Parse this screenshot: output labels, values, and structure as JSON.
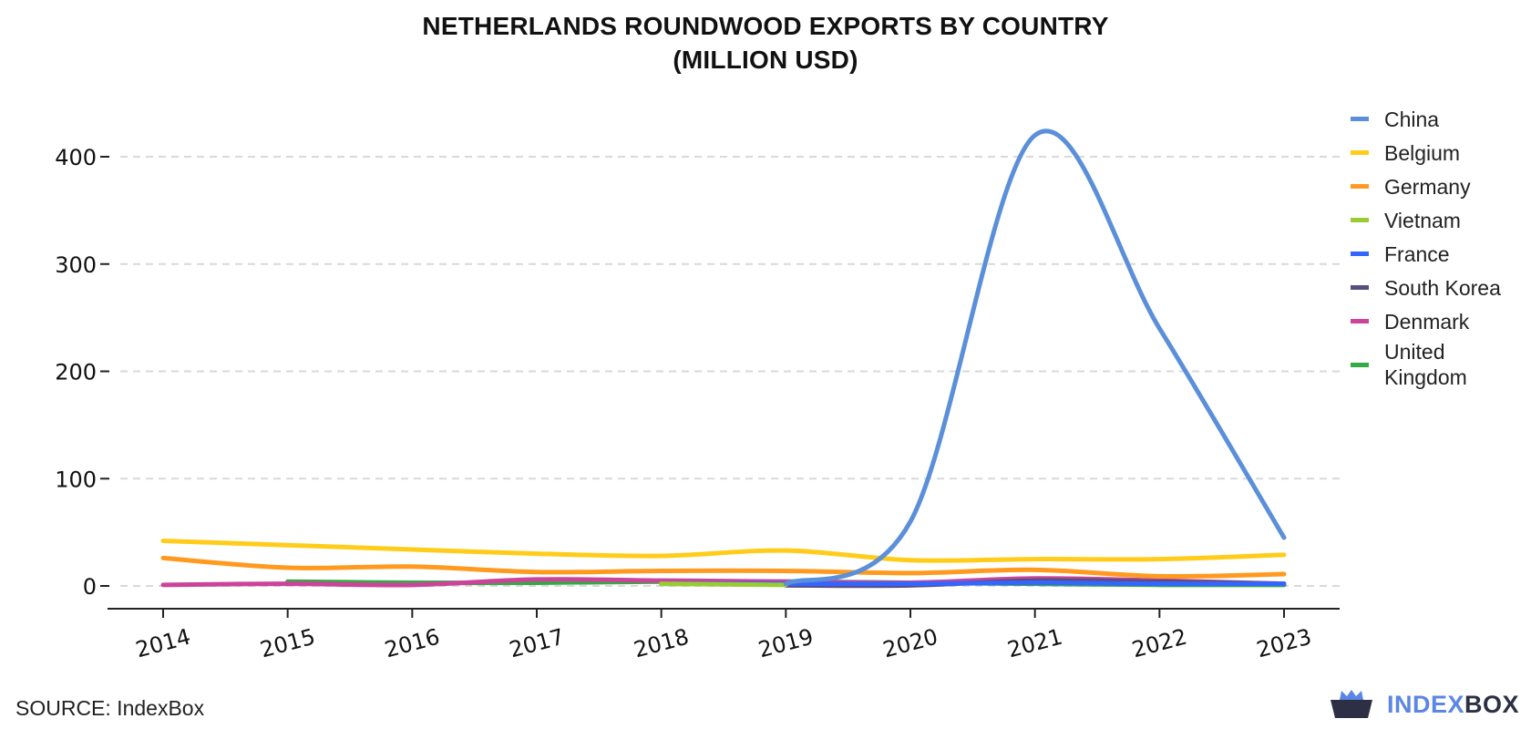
{
  "title_line1": "NETHERLANDS ROUNDWOOD EXPORTS BY COUNTRY",
  "title_line2": "(MILLION USD)",
  "source": "SOURCE: IndexBox",
  "brand": {
    "part1": "INDEX",
    "part2": "BOX"
  },
  "chart_data": {
    "type": "line",
    "title": "NETHERLANDS ROUNDWOOD EXPORTS BY COUNTRY (MILLION USD)",
    "xlabel": "",
    "ylabel": "",
    "x": [
      2014,
      2015,
      2016,
      2017,
      2018,
      2019,
      2020,
      2021,
      2022,
      2023
    ],
    "x_tick_labels": [
      "2014",
      "2015",
      "2016",
      "2017",
      "2018",
      "2019",
      "2020",
      "2021",
      "2022",
      "2023"
    ],
    "ylim": [
      -20,
      440
    ],
    "y_ticks": [
      0,
      100,
      200,
      300,
      400
    ],
    "y_tick_labels": [
      "0",
      "100",
      "200",
      "300",
      "400"
    ],
    "grid": "horizontal dashed",
    "legend_position": "right",
    "series": [
      {
        "name": "China",
        "color": "#5b8fd9",
        "values": [
          null,
          null,
          null,
          null,
          null,
          2,
          60,
          420,
          240,
          45
        ]
      },
      {
        "name": "Belgium",
        "color": "#ffcc1a",
        "values": [
          42,
          38,
          34,
          30,
          28,
          33,
          24,
          25,
          25,
          29
        ]
      },
      {
        "name": "Germany",
        "color": "#ff9a1f",
        "values": [
          26,
          17,
          18,
          13,
          14,
          14,
          12,
          15,
          9,
          11
        ]
      },
      {
        "name": "Vietnam",
        "color": "#99cc33",
        "values": [
          null,
          null,
          null,
          null,
          2,
          1,
          null,
          null,
          null,
          null
        ]
      },
      {
        "name": "France",
        "color": "#3366ff",
        "values": [
          null,
          null,
          null,
          null,
          2,
          2,
          2,
          3,
          2,
          2
        ]
      },
      {
        "name": "South Korea",
        "color": "#5c4d80",
        "values": [
          null,
          null,
          null,
          null,
          null,
          0.5,
          0.5,
          5,
          4,
          2
        ]
      },
      {
        "name": "Denmark",
        "color": "#cc4499",
        "values": [
          1,
          2,
          1,
          6,
          5,
          4,
          3,
          7,
          5,
          2
        ]
      },
      {
        "name": "United Kingdom",
        "color": "#33aa44",
        "values": [
          null,
          4,
          3,
          3,
          4,
          4,
          3,
          2,
          1,
          1
        ]
      }
    ]
  }
}
